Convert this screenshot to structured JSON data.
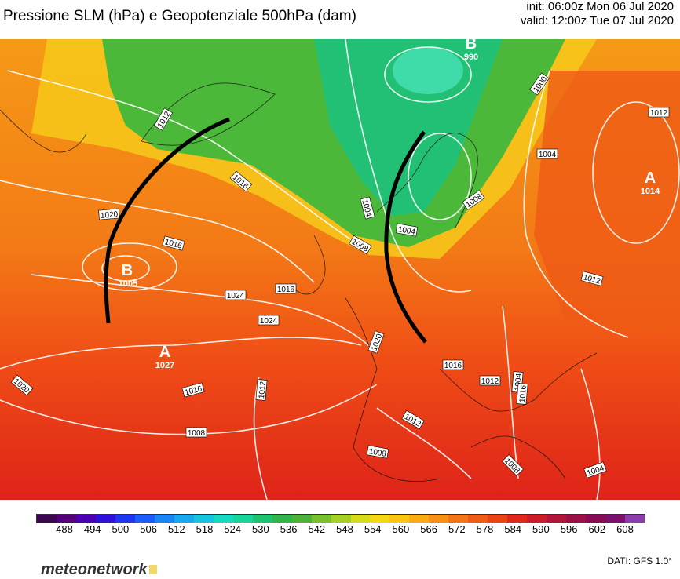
{
  "header": {
    "title": "Pressione SLM (hPa) e Geopotenziale 500hPa (dam)",
    "init": "init: 06:00z Mon 06 Jul 2020",
    "valid": "valid: 12:00z Tue 07 Jul 2020"
  },
  "map": {
    "pressure_centers": [
      {
        "letter": "B",
        "value": "990"
      },
      {
        "letter": "B",
        "value": "1005"
      },
      {
        "letter": "A",
        "value": "1027"
      },
      {
        "letter": "A",
        "value": "1014"
      }
    ],
    "isobar_labels": [
      "1012",
      "1016",
      "1020",
      "1016",
      "1024",
      "1024",
      "1020",
      "1016",
      "1008",
      "1012",
      "1004",
      "1008",
      "1000",
      "1004",
      "1008",
      "1004",
      "1012",
      "1012",
      "1020",
      "1016",
      "1016",
      "1012",
      "1012",
      "1008",
      "1004",
      "1016",
      "1008",
      "1004"
    ]
  },
  "colorbar": {
    "ticks": [
      "488",
      "494",
      "500",
      "506",
      "512",
      "518",
      "524",
      "530",
      "536",
      "542",
      "548",
      "554",
      "560",
      "566",
      "572",
      "578",
      "584",
      "590",
      "596",
      "602",
      "608"
    ],
    "colors": [
      "#3c0650",
      "#55007a",
      "#4a00b0",
      "#2f10d8",
      "#1f35f0",
      "#1c5cf8",
      "#1a86f5",
      "#18a8ef",
      "#16c4e0",
      "#16d8c0",
      "#18d49a",
      "#1fc36f",
      "#30b648",
      "#4cb238",
      "#77c22c",
      "#a4d023",
      "#d6dc1c",
      "#f4d817",
      "#fcc514",
      "#fbab14",
      "#f79116",
      "#f37616",
      "#ef5c15",
      "#ea4314",
      "#e0281a",
      "#cc1c28",
      "#b3153a",
      "#9c1048",
      "#8a0a55",
      "#7d0f6e",
      "#8b3dab"
    ]
  },
  "footer": {
    "brand": "meteonetwork",
    "source": "DATI:  GFS  1.0°"
  }
}
